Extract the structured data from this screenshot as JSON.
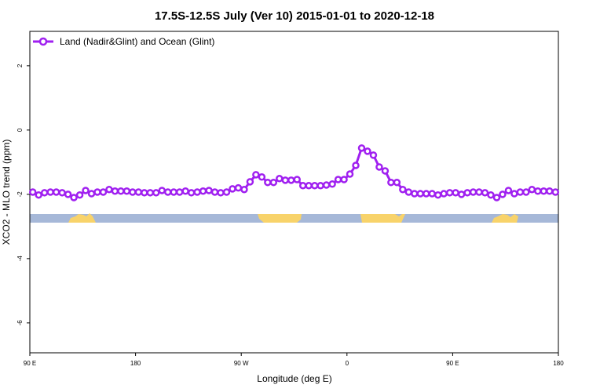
{
  "chart_data": {
    "type": "line",
    "title": "17.5S-12.5S July (Ver 10)   2015-01-01 to 2020-12-18",
    "x_label": "Longitude (deg E)",
    "y_label": "XCO2 - MLO trend (ppm)",
    "legend": "top-left",
    "xlim": [
      90,
      540
    ],
    "ylim": [
      -6.93,
      3.07
    ],
    "xticks": [
      {
        "value": 90,
        "label": "90 E"
      },
      180,
      {
        "value": 270,
        "label": "90 W"
      },
      {
        "value": 360,
        "label": "0"
      },
      {
        "value": 450,
        "label": "90 E"
      },
      {
        "value": 540,
        "label": "180"
      }
    ],
    "yticks": [
      2,
      0,
      -2,
      -4,
      -6
    ],
    "x": [
      92.5,
      97.5,
      102.5,
      107.5,
      112.5,
      117.5,
      122.5,
      127.5,
      132.5,
      137.5,
      142.5,
      147.5,
      152.5,
      157.5,
      162.5,
      167.5,
      172.5,
      177.5,
      182.5,
      187.5,
      192.5,
      197.5,
      202.5,
      207.5,
      212.5,
      217.5,
      222.5,
      227.5,
      232.5,
      237.5,
      242.5,
      247.5,
      252.5,
      257.5,
      262.5,
      267.5,
      272.5,
      277.5,
      282.5,
      287.5,
      292.5,
      297.5,
      302.5,
      307.5,
      312.5,
      317.5,
      322.5,
      327.5,
      332.5,
      337.5,
      342.5,
      347.5,
      352.5,
      357.5,
      362.5,
      367.5,
      372.5,
      377.5,
      382.5,
      387.5,
      392.5,
      397.5,
      402.5,
      407.5,
      412.5,
      417.5,
      422.5,
      427.5,
      432.5,
      437.5,
      442.5,
      447.5,
      452.5,
      457.5,
      462.5,
      467.5,
      472.5,
      477.5,
      482.5,
      487.5,
      492.5,
      497.5,
      502.5,
      507.5,
      512.5,
      517.5,
      522.5,
      527.5,
      532.5,
      537.5
    ],
    "series": [
      {
        "name": "Land (Nadir&Glint) and Ocean (Glint)",
        "color": "#a020f0",
        "values": [
          -1.93,
          -2.02,
          -1.95,
          -1.93,
          -1.93,
          -1.95,
          -2.0,
          -2.1,
          -2.02,
          -1.88,
          -1.98,
          -1.93,
          -1.93,
          -1.85,
          -1.9,
          -1.9,
          -1.9,
          -1.93,
          -1.93,
          -1.95,
          -1.95,
          -1.95,
          -1.88,
          -1.93,
          -1.93,
          -1.93,
          -1.9,
          -1.95,
          -1.93,
          -1.9,
          -1.88,
          -1.93,
          -1.95,
          -1.93,
          -1.83,
          -1.8,
          -1.85,
          -1.61,
          -1.39,
          -1.46,
          -1.63,
          -1.63,
          -1.51,
          -1.56,
          -1.56,
          -1.54,
          -1.73,
          -1.73,
          -1.73,
          -1.73,
          -1.71,
          -1.68,
          -1.54,
          -1.54,
          -1.37,
          -1.1,
          -0.56,
          -0.66,
          -0.78,
          -1.15,
          -1.27,
          -1.63,
          -1.63,
          -1.85,
          -1.93,
          -1.98,
          -1.98,
          -1.98,
          -1.98,
          -2.02,
          -1.98,
          -1.95,
          -1.95,
          -2.0,
          -1.95,
          -1.93,
          -1.93,
          -1.95,
          -2.02,
          -2.1,
          -2.0,
          -1.88,
          -1.98,
          -1.93,
          -1.93,
          -1.85,
          -1.9,
          -1.9,
          -1.9,
          -1.93
        ]
      }
    ]
  }
}
